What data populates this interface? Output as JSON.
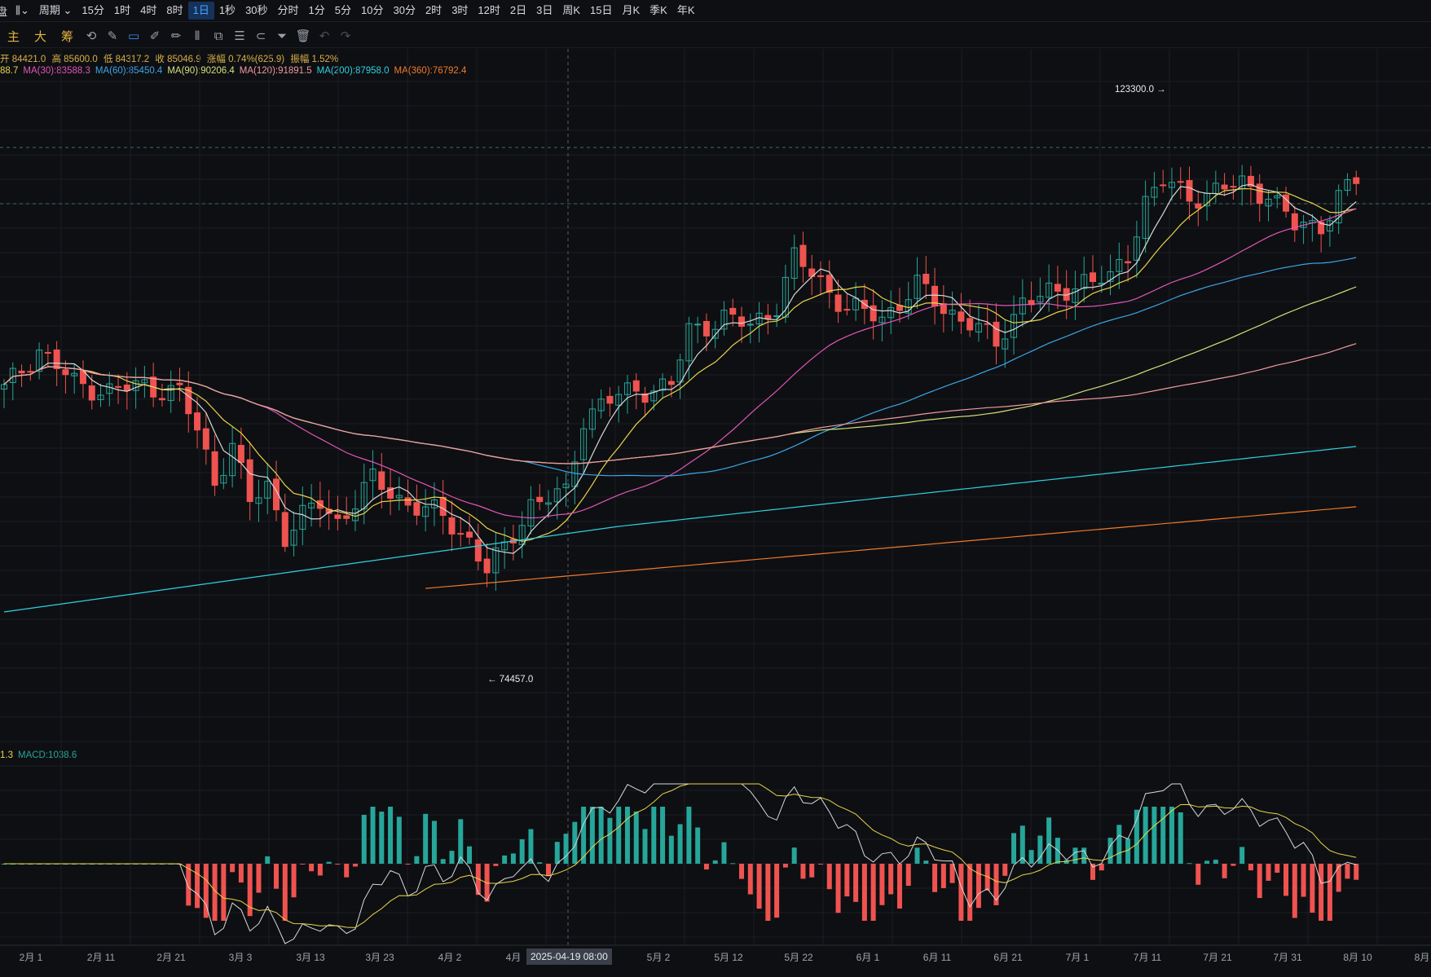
{
  "toolbar": {
    "brand": "盘",
    "chart_type_icon": "candle-icon",
    "period_label": "周期",
    "timeframes": [
      "15分",
      "1时",
      "4时",
      "8时",
      "1日",
      "1秒",
      "30秒",
      "分时",
      "1分",
      "5分",
      "10分",
      "30分",
      "2时",
      "3时",
      "12时",
      "2日",
      "3日",
      "周K",
      "15日",
      "月K",
      "季K",
      "年K"
    ],
    "active_timeframe": "1日"
  },
  "drawbar": {
    "tabs": [
      "主",
      "大",
      "筹"
    ],
    "tools": [
      "indicator-icon",
      "draw-icon",
      "ruler-icon",
      "pen-icon",
      "candles-icon",
      "copy-icon",
      "note-icon",
      "magnet-icon",
      "filter-icon",
      "trash-icon",
      "undo-icon",
      "redo-icon"
    ]
  },
  "ohlc": {
    "open": "开 84421.0",
    "high": "高 85600.0",
    "low": "低 84317.2",
    "close": "收 85046.9",
    "change": "涨幅 0.74%(625.9)",
    "amplitude": "振幅 1.52%"
  },
  "ma_legend": [
    {
      "text": "88.7",
      "color": "#e8d44d"
    },
    {
      "text": "MA(30):83588.3",
      "color": "#e056b8"
    },
    {
      "text": "MA(60):85450.4",
      "color": "#3ba6e8"
    },
    {
      "text": "MA(90):90206.4",
      "color": "#d6e07a"
    },
    {
      "text": "MA(120):91891.5",
      "color": "#f09aa0"
    },
    {
      "text": "MA(200):87958.0",
      "color": "#2fd0e0"
    },
    {
      "text": "MA(360):76792.4",
      "color": "#f07a2a"
    }
  ],
  "macd_legend": [
    {
      "text": "1.3",
      "color": "#e8d44d"
    },
    {
      "text": "MACD:1038.6",
      "color": "#26a69a"
    }
  ],
  "annotations": {
    "high": "123300.0",
    "low": "74457.0"
  },
  "crosshair_date": "2025-04-19 08:00",
  "chart_data": {
    "type": "candlestick",
    "x_labels": [
      "2月 1",
      "2月 11",
      "2月 21",
      "3月 3",
      "3月 13",
      "3月 23",
      "4月 2",
      "4月",
      "5月 2",
      "5月 12",
      "5月 22",
      "6月 1",
      "6月 11",
      "6月 21",
      "7月 1",
      "7月 11",
      "7月 21",
      "7月 31",
      "8月 10",
      "8月"
    ],
    "y_range": [
      64000,
      131000
    ],
    "series_summary": [
      {
        "t": 0,
        "v": 96500
      },
      {
        "t": 4,
        "v": 101000
      },
      {
        "t": 8,
        "v": 97200
      },
      {
        "t": 12,
        "v": 96400
      },
      {
        "t": 16,
        "v": 97000
      },
      {
        "t": 20,
        "v": 96200
      },
      {
        "t": 22,
        "v": 92000
      },
      {
        "t": 24,
        "v": 86500
      },
      {
        "t": 26,
        "v": 90500
      },
      {
        "t": 28,
        "v": 84000
      },
      {
        "t": 30,
        "v": 86000
      },
      {
        "t": 32,
        "v": 80500
      },
      {
        "t": 34,
        "v": 82500
      },
      {
        "t": 36,
        "v": 84000
      },
      {
        "t": 38,
        "v": 82000
      },
      {
        "t": 42,
        "v": 86500
      },
      {
        "t": 46,
        "v": 84000
      },
      {
        "t": 50,
        "v": 82500
      },
      {
        "t": 53,
        "v": 80000
      },
      {
        "t": 55,
        "v": 76500
      },
      {
        "t": 57,
        "v": 79000
      },
      {
        "t": 60,
        "v": 84000
      },
      {
        "t": 64,
        "v": 85000
      },
      {
        "t": 66,
        "v": 93500
      },
      {
        "t": 68,
        "v": 95000
      },
      {
        "t": 72,
        "v": 96500
      },
      {
        "t": 76,
        "v": 97000
      },
      {
        "t": 78,
        "v": 103000
      },
      {
        "t": 82,
        "v": 104500
      },
      {
        "t": 85,
        "v": 103500
      },
      {
        "t": 88,
        "v": 106000
      },
      {
        "t": 90,
        "v": 111000
      },
      {
        "t": 93,
        "v": 108500
      },
      {
        "t": 96,
        "v": 105500
      },
      {
        "t": 100,
        "v": 104500
      },
      {
        "t": 104,
        "v": 108000
      },
      {
        "t": 107,
        "v": 105500
      },
      {
        "t": 110,
        "v": 104000
      },
      {
        "t": 113,
        "v": 101500
      },
      {
        "t": 116,
        "v": 106500
      },
      {
        "t": 120,
        "v": 107000
      },
      {
        "t": 123,
        "v": 108800
      },
      {
        "t": 126,
        "v": 108500
      },
      {
        "t": 128,
        "v": 111500
      },
      {
        "t": 130,
        "v": 117500
      },
      {
        "t": 132,
        "v": 119500
      },
      {
        "t": 135,
        "v": 117800
      },
      {
        "t": 138,
        "v": 118500
      },
      {
        "t": 141,
        "v": 119200
      },
      {
        "t": 144,
        "v": 118200
      },
      {
        "t": 147,
        "v": 114500
      },
      {
        "t": 150,
        "v": 114800
      },
      {
        "t": 152,
        "v": 117800
      },
      {
        "t": 154,
        "v": 119500
      }
    ],
    "high_annotation": 123300.0,
    "low_annotation": 74457.0,
    "moving_averages": [
      "MA(30)",
      "MA(60)",
      "MA(90)",
      "MA(120)",
      "MA(200)",
      "MA(360)"
    ],
    "macd_value": 1038.6,
    "colors": {
      "up": "#26a69a",
      "down": "#ef5350",
      "grid": "#1b1e24",
      "bg": "#0e0f12"
    }
  }
}
